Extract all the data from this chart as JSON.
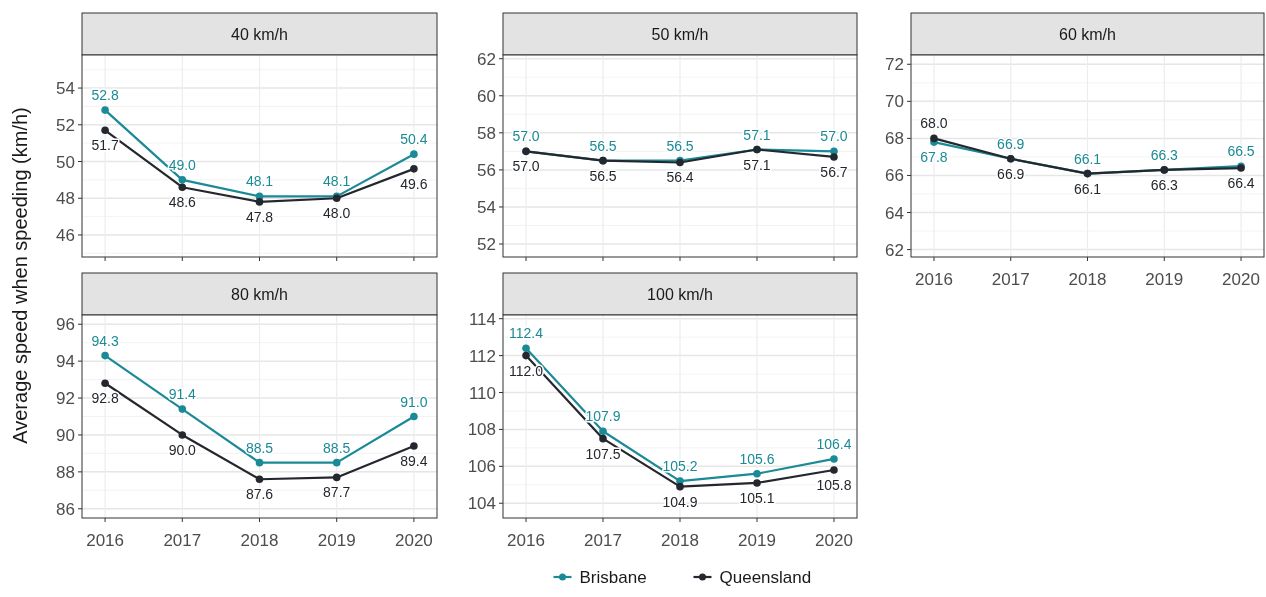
{
  "chart_data": [
    {
      "type": "line",
      "title": "40 km/h",
      "ylabel": "Average speed when speeding (km/h)",
      "categories": [
        "2016",
        "2017",
        "2018",
        "2019",
        "2020"
      ],
      "ylim": [
        44.8,
        55.8
      ],
      "yticks": [
        46,
        48,
        50,
        52,
        54
      ],
      "tick_labels": "y",
      "grid": true,
      "marker": "circle",
      "series": [
        {
          "color": "#1a8a96",
          "values": [
            52.8,
            49.0,
            48.1,
            48.1,
            50.4
          ],
          "value_labels": [
            "52.8",
            "49.0",
            "48.1",
            "48.1",
            "50.4"
          ]
        },
        {
          "color": "#24282e",
          "values": [
            51.7,
            48.6,
            47.8,
            48.0,
            49.6
          ],
          "value_labels": [
            "51.7",
            "48.6",
            "47.8",
            "48.0",
            "49.6"
          ]
        }
      ]
    },
    {
      "type": "line",
      "title": "50 km/h",
      "categories": [
        "2016",
        "2017",
        "2018",
        "2019",
        "2020"
      ],
      "ylim": [
        51.3,
        62.2
      ],
      "yticks": [
        52,
        54,
        56,
        58,
        60,
        62
      ],
      "tick_labels": "y",
      "grid": true,
      "marker": "circle",
      "series": [
        {
          "color": "#1a8a96",
          "values": [
            57.0,
            56.5,
            56.5,
            57.1,
            57.0
          ],
          "value_labels": [
            "57.0",
            "56.5",
            "56.5",
            "57.1",
            "57.0"
          ]
        },
        {
          "color": "#24282e",
          "values": [
            57.0,
            56.5,
            56.4,
            57.1,
            56.7
          ],
          "value_labels": [
            "57.0",
            "56.5",
            "56.4",
            "57.1",
            "56.7"
          ]
        }
      ]
    },
    {
      "type": "line",
      "title": "60 km/h",
      "categories": [
        "2016",
        "2017",
        "2018",
        "2019",
        "2020"
      ],
      "ylim": [
        61.6,
        72.5
      ],
      "yticks": [
        62,
        64,
        66,
        68,
        70,
        72
      ],
      "grid": true,
      "marker": "circle",
      "series": [
        {
          "color": "#1a8a96",
          "values": [
            67.8,
            66.9,
            66.1,
            66.3,
            66.5
          ],
          "value_labels": [
            "67.8",
            "66.9",
            "66.1",
            "66.3",
            "66.5"
          ]
        },
        {
          "color": "#24282e",
          "values": [
            68.0,
            66.9,
            66.1,
            66.3,
            66.4
          ],
          "value_labels": [
            "68.0",
            "66.9",
            "66.1",
            "66.3",
            "66.4"
          ]
        }
      ]
    },
    {
      "type": "line",
      "title": "80 km/h",
      "categories": [
        "2016",
        "2017",
        "2018",
        "2019",
        "2020"
      ],
      "ylim": [
        85.5,
        96.5
      ],
      "yticks": [
        86,
        88,
        90,
        92,
        94,
        96
      ],
      "grid": true,
      "marker": "circle",
      "series": [
        {
          "color": "#1a8a96",
          "values": [
            94.3,
            91.4,
            88.5,
            88.5,
            91.0
          ],
          "value_labels": [
            "94.3",
            "91.4",
            "88.5",
            "88.5",
            "91.0"
          ]
        },
        {
          "color": "#24282e",
          "values": [
            92.8,
            90.0,
            87.6,
            87.7,
            89.4
          ],
          "value_labels": [
            "92.8",
            "90.0",
            "87.6",
            "87.7",
            "89.4"
          ]
        }
      ]
    },
    {
      "type": "line",
      "title": "100 km/h",
      "categories": [
        "2016",
        "2017",
        "2018",
        "2019",
        "2020"
      ],
      "ylim": [
        103.2,
        114.2
      ],
      "yticks": [
        104,
        106,
        108,
        110,
        112,
        114
      ],
      "grid": true,
      "marker": "circle",
      "legend": "bottom",
      "series": [
        {
          "name": "Brisbane",
          "color": "#1a8a96",
          "values": [
            112.4,
            107.9,
            105.2,
            105.6,
            106.4
          ],
          "value_labels": [
            "112.4",
            "107.9",
            "105.2",
            "105.6",
            "106.4"
          ]
        },
        {
          "name": "Queensland",
          "color": "#24282e",
          "values": [
            112.0,
            107.5,
            104.9,
            105.1,
            105.8
          ],
          "value_labels": [
            "112.0",
            "107.5",
            "104.9",
            "105.1",
            "105.8"
          ]
        }
      ]
    }
  ]
}
